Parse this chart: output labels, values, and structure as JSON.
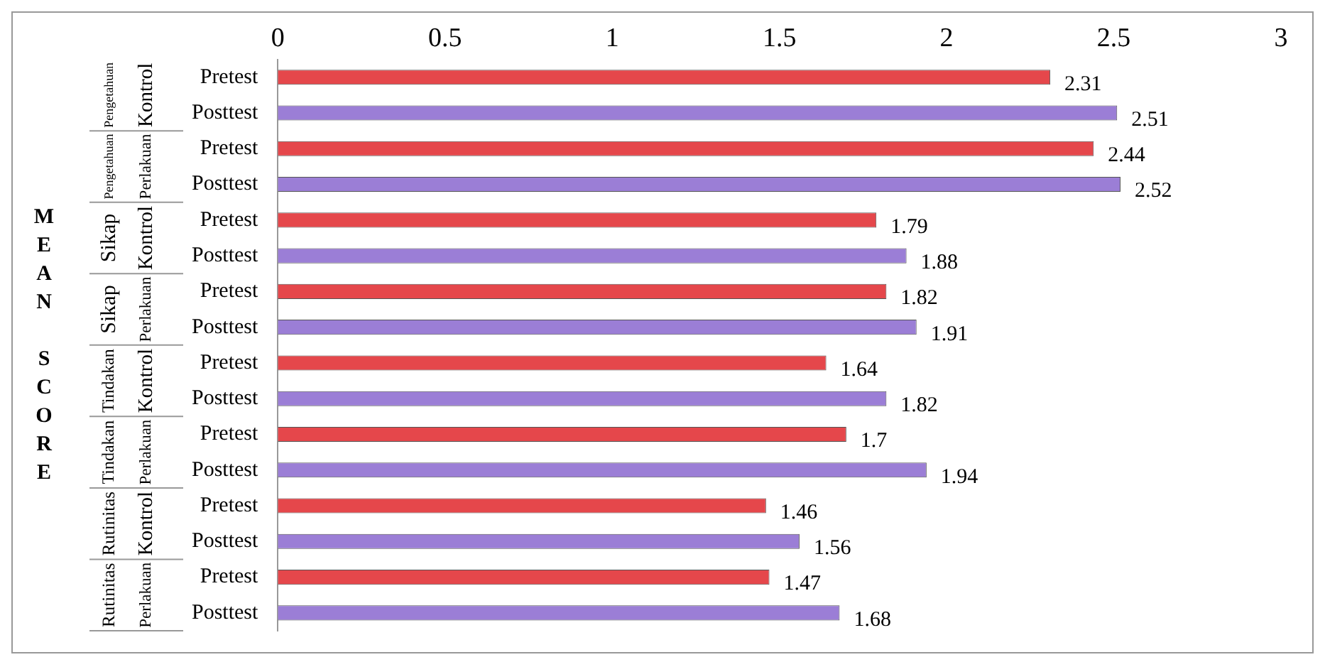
{
  "chart_data": {
    "type": "bar",
    "orientation": "horizontal",
    "ylabel": "MEAN SCORE",
    "categories": [
      "Pretest",
      "Posttest",
      "Pretest",
      "Posttest",
      "Pretest",
      "Posttest",
      "Pretest",
      "Posttest",
      "Pretest",
      "Posttest",
      "Pretest",
      "Posttest",
      "Pretest",
      "Posttest",
      "Pretest",
      "Posttest"
    ],
    "values": [
      2.31,
      2.51,
      2.44,
      2.52,
      1.79,
      1.88,
      1.82,
      1.91,
      1.64,
      1.82,
      1.7,
      1.94,
      1.46,
      1.56,
      1.47,
      1.68
    ],
    "colors": [
      "#e5474b",
      "#9b7ed6",
      "#e5474b",
      "#9b7ed6",
      "#e5474b",
      "#9b7ed6",
      "#e5474b",
      "#9b7ed6",
      "#e5474b",
      "#9b7ed6",
      "#e5474b",
      "#9b7ed6",
      "#e5474b",
      "#9b7ed6",
      "#e5474b",
      "#9b7ed6"
    ],
    "xlim": [
      0,
      3
    ],
    "xticks": [
      0,
      0.5,
      1,
      1.5,
      2,
      2.5,
      3
    ],
    "data_labels": true,
    "grid": false,
    "legend": false,
    "annotations": [
      "Pengetahuan",
      "Kontrol",
      "Pengetahuan",
      "Perlakuan",
      "Sikap",
      "Kontrol",
      "Sikap",
      "Perlakuan",
      "Tindakan",
      "Kontrol",
      "Tindakan",
      "Perlakuan",
      "Rutinitas",
      "Kontrol",
      "Rutinitas",
      "Perlakuan"
    ]
  }
}
